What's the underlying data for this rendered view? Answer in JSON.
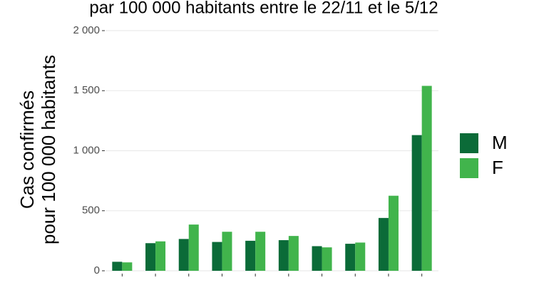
{
  "chart_data": {
    "type": "bar",
    "title": "par 100 000 habitants entre le 22/11 et le 5/12",
    "y_label": [
      "Cas confirmés",
      "pour 100 000 habitants"
    ],
    "categories": [
      null,
      null,
      null,
      null,
      null,
      null,
      null,
      null,
      null,
      null
    ],
    "series": [
      {
        "name": "M",
        "color": "#0b6b38",
        "values": [
          75,
          230,
          265,
          240,
          250,
          255,
          205,
          225,
          440,
          1130
        ]
      },
      {
        "name": "F",
        "color": "#41b44c",
        "values": [
          70,
          245,
          385,
          325,
          325,
          290,
          195,
          235,
          625,
          1540
        ]
      }
    ],
    "ylim": [
      0,
      2000
    ],
    "yticks": [
      0,
      500,
      {
        "value": 1000,
        "label": "1 000"
      },
      {
        "value": 1500,
        "label": "1 500"
      },
      {
        "value": 2000,
        "label": "2 000"
      }
    ],
    "grid": true,
    "legend": "right"
  }
}
